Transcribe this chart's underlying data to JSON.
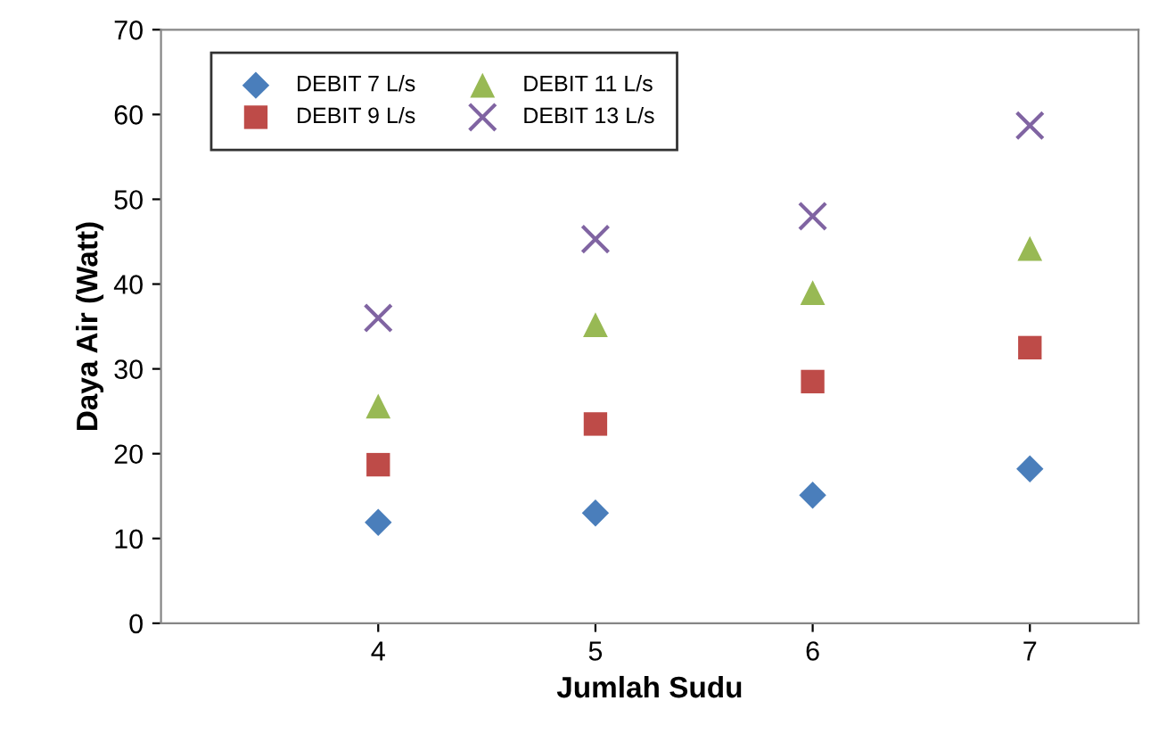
{
  "chart_data": {
    "type": "scatter",
    "xlabel": "Jumlah Sudu",
    "ylabel": "Daya Air (Watt)",
    "x": [
      4,
      5,
      6,
      7
    ],
    "xlim": [
      3,
      7.5
    ],
    "xticks": [
      4,
      5,
      6,
      7
    ],
    "ylim": [
      0,
      70
    ],
    "yticks": [
      0,
      10,
      20,
      30,
      40,
      50,
      60,
      70
    ],
    "legend": "top left",
    "grid": false,
    "series": [
      {
        "name": "DEBIT 7 L/s",
        "color": "#4a7ebb",
        "marker": "diamond",
        "values": [
          11.9,
          13,
          15.1,
          18.2
        ]
      },
      {
        "name": "DEBIT 9 L/s",
        "color": "#be4b48",
        "marker": "square",
        "values": [
          18.7,
          23.5,
          28.5,
          32.5
        ]
      },
      {
        "name": "DEBIT 11 L/s",
        "color": "#98b954",
        "marker": "triangle",
        "values": [
          25.6,
          35.2,
          39,
          44.2
        ]
      },
      {
        "name": "DEBIT 13 L/s",
        "color": "#8064a2",
        "marker": "cross",
        "values": [
          36,
          45.3,
          48,
          58.7
        ]
      }
    ]
  }
}
